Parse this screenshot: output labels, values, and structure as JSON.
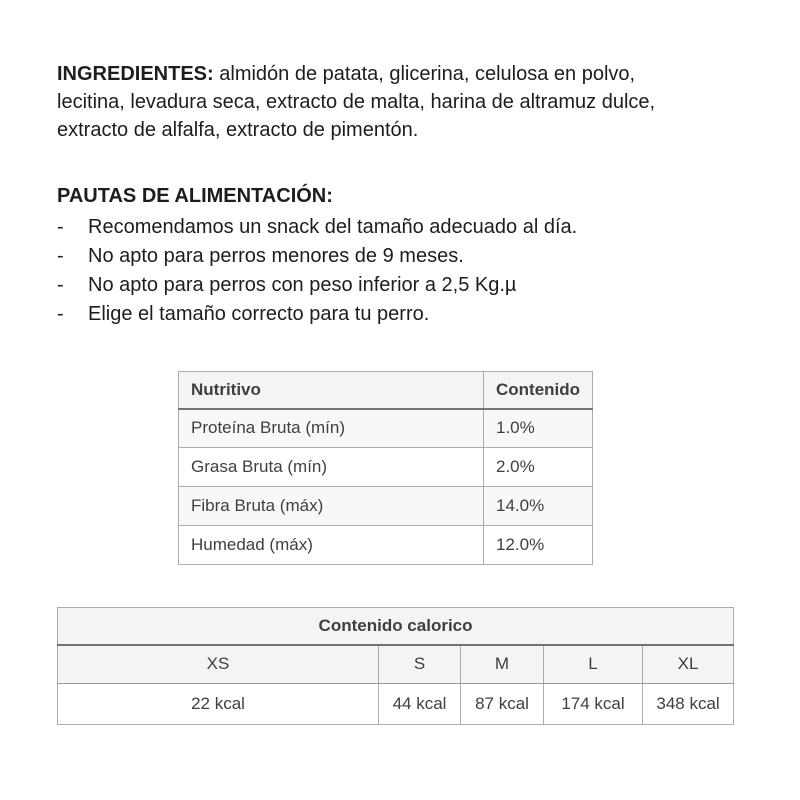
{
  "ingredients": {
    "label": "INGREDIENTES:",
    "line1": "almidón de patata, glicerina, celulosa en polvo,",
    "line2": "lecitina, levadura seca, extracto de malta, harina de altramuz dulce,",
    "line3": "extracto de alfalfa, extracto de pimentón."
  },
  "feeding_guidelines": {
    "title": "PAUTAS DE ALIMENTACIÓN:",
    "bullet": "-",
    "items": [
      "Recomendamos un snack del tamaño adecuado al día.",
      "No apto para perros menores de 9 meses.",
      "No apto para perros con peso inferior a 2,5 Kg.µ",
      "Elige el tamaño correcto para tu perro."
    ]
  },
  "nutrition_table": {
    "headers": {
      "nutrient": "Nutritivo",
      "content": "Contenido"
    },
    "rows": [
      {
        "nutrient": "Proteína Bruta (mín)",
        "content": "1.0%"
      },
      {
        "nutrient": "Grasa Bruta (mín)",
        "content": "2.0%"
      },
      {
        "nutrient": "Fibra Bruta (máx)",
        "content": "14.0%"
      },
      {
        "nutrient": "Humedad (máx)",
        "content": "12.0%"
      }
    ]
  },
  "calorie_table": {
    "title": "Contenido calorico",
    "sizes": [
      "XS",
      "S",
      "M",
      "L",
      "XL"
    ],
    "values": [
      "22 kcal",
      "44 kcal",
      "87 kcal",
      "174 kcal",
      "348 kcal"
    ]
  },
  "colors": {
    "page_background": "#ffffff",
    "body_text": "#1d1d1b",
    "table_text": "#3f3f3f",
    "table_outer_border": "#9b9b9b",
    "table_inner_border": "#ababab",
    "header_separator": "#737373",
    "header_background": "#f4f4f4",
    "stripe_background": "#f8f8f8"
  }
}
